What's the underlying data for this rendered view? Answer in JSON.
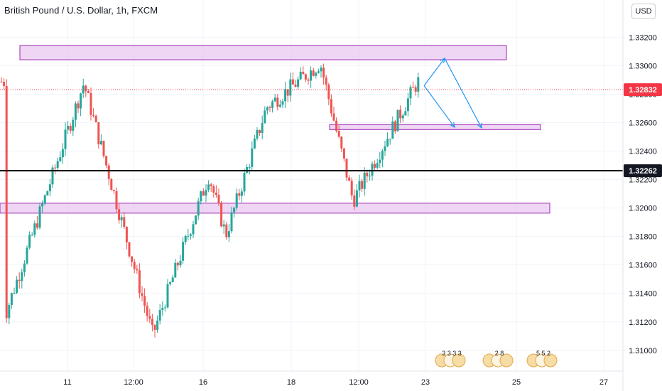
{
  "header": {
    "title": "British Pound / U.S. Dollar, 1h, FXCM",
    "currency_button": "USD"
  },
  "colors": {
    "up": "#26a69a",
    "down": "#ef5350",
    "zone_fill": "#e9c8f0",
    "zone_border": "#9c27b0",
    "projection": "#2196f3",
    "current_price_badge": "#f23645",
    "horizontal_line": "#000000"
  },
  "chart_data": {
    "type": "candlestick",
    "symbol": "British Pound / U.S. Dollar",
    "interval": "1h",
    "source": "FXCM",
    "x_tick_labels": [
      "11",
      "12:00",
      "16",
      "18",
      "12:00",
      "23",
      "25",
      "27"
    ],
    "y_ticks": [
      "1.33200",
      "1.33000",
      "1.32800",
      "1.32600",
      "1.32400",
      "1.32200",
      "1.32000",
      "1.31800",
      "1.31600",
      "1.31400",
      "1.31200",
      "1.31000"
    ],
    "ylim": [
      1.30904,
      1.33352
    ],
    "current_price": {
      "value": 1.32832,
      "label": "1.32832"
    },
    "horizontal_line": {
      "value": 1.32262,
      "label": "1.32262"
    },
    "resistance_zone": {
      "y_low": 1.33042,
      "y_high": 1.33142
    },
    "middle_zone": {
      "y_low": 1.32551,
      "y_high": 1.32586
    },
    "support_zone": {
      "y_low": 1.31964,
      "y_high": 1.32034
    },
    "key_points": [
      {
        "time": "10th",
        "price": 1.31259
      },
      {
        "time": "11th",
        "price": 1.32877
      },
      {
        "time": "15th",
        "price": 1.31109
      },
      {
        "time": "16th",
        "price": 1.32228
      },
      {
        "time": "16th-17th",
        "price": 1.31809
      },
      {
        "time": "17th-18th",
        "price": 1.32706
      },
      {
        "time": "19th",
        "price": 1.33018
      },
      {
        "time": "19th-20th",
        "price": 1.32051
      },
      {
        "time": "22nd",
        "price": 1.32888
      }
    ],
    "projection_path": [
      {
        "price": 1.3286
      },
      {
        "price": 1.33052
      },
      {
        "price": 1.32563
      }
    ],
    "event_markers": [
      {
        "label": "3 3 3 3"
      },
      {
        "label": "2 8"
      },
      {
        "label": "5 5 2"
      }
    ]
  }
}
